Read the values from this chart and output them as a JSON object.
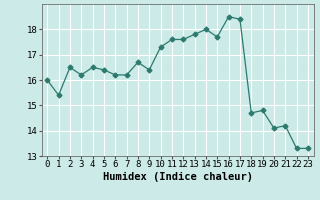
{
  "x": [
    0,
    1,
    2,
    3,
    4,
    5,
    6,
    7,
    8,
    9,
    10,
    11,
    12,
    13,
    14,
    15,
    16,
    17,
    18,
    19,
    20,
    21,
    22,
    23
  ],
  "y": [
    16.0,
    15.4,
    16.5,
    16.2,
    16.5,
    16.4,
    16.2,
    16.2,
    16.7,
    16.4,
    17.3,
    17.6,
    17.6,
    17.8,
    18.0,
    17.7,
    18.5,
    18.4,
    14.7,
    14.8,
    14.1,
    14.2,
    13.3,
    13.3
  ],
  "line_color": "#2d7a6e",
  "marker": "D",
  "marker_size": 2.5,
  "bg_color": "#cceae7",
  "grid_color": "#ffffff",
  "xlabel": "Humidex (Indice chaleur)",
  "xlim": [
    -0.5,
    23.5
  ],
  "ylim": [
    13,
    19
  ],
  "yticks": [
    13,
    14,
    15,
    16,
    17,
    18
  ],
  "xticks": [
    0,
    1,
    2,
    3,
    4,
    5,
    6,
    7,
    8,
    9,
    10,
    11,
    12,
    13,
    14,
    15,
    16,
    17,
    18,
    19,
    20,
    21,
    22,
    23
  ],
  "tick_fontsize": 6.5,
  "xlabel_fontsize": 7.5,
  "font_family": "monospace"
}
